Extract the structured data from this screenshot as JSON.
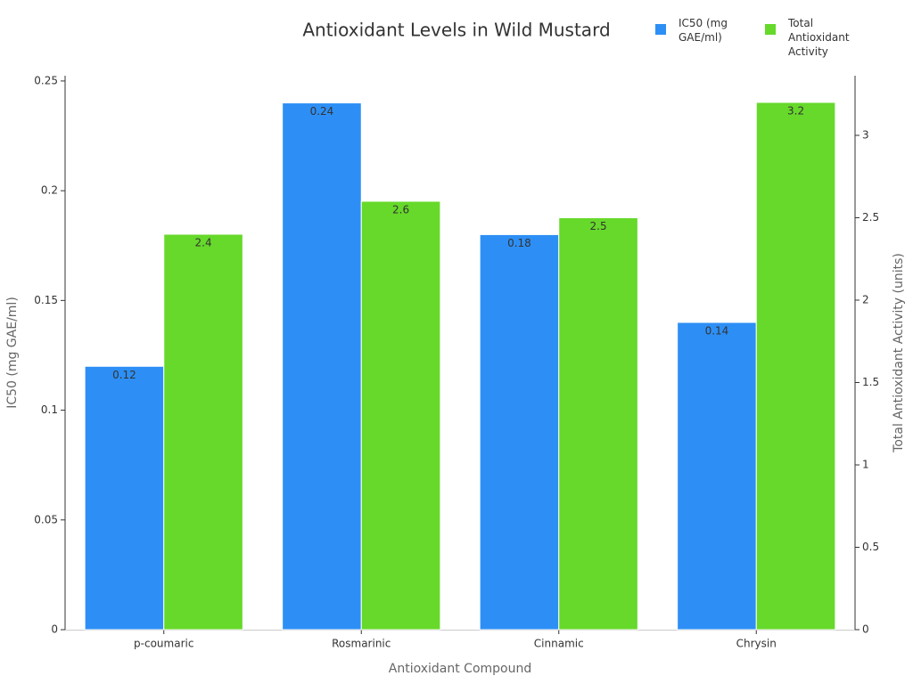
{
  "chart_data": {
    "type": "bar",
    "title": "Antioxidant Levels in Wild Mustard",
    "x_label": "Antioxidant Compound",
    "y_label": "IC50 (mg GAE/ml)",
    "y2_label": "Total Antioxidant Activity (units)",
    "categories": [
      "p-coumaric",
      "Rosmarinic",
      "Cinnamic",
      "Chrysin"
    ],
    "series": [
      {
        "name": "IC50 (mg GAE/ml)",
        "color": "#2d8ff5",
        "values": [
          0.12,
          0.24,
          0.18,
          0.14
        ]
      },
      {
        "name": "Total Antioxidant Activity",
        "color": "#66d92a",
        "axis": "y2",
        "values": [
          2.4,
          2.6,
          2.5,
          3.2
        ]
      }
    ],
    "ylim": [
      0,
      0.2524
    ],
    "yticks": [
      0,
      0.05,
      0.1,
      0.15,
      0.2,
      0.25
    ],
    "y2lim": [
      0,
      3.362
    ],
    "y2ticks": [
      0,
      0.5,
      1,
      1.5,
      2,
      2.5,
      3
    ],
    "legend": "top-right"
  }
}
